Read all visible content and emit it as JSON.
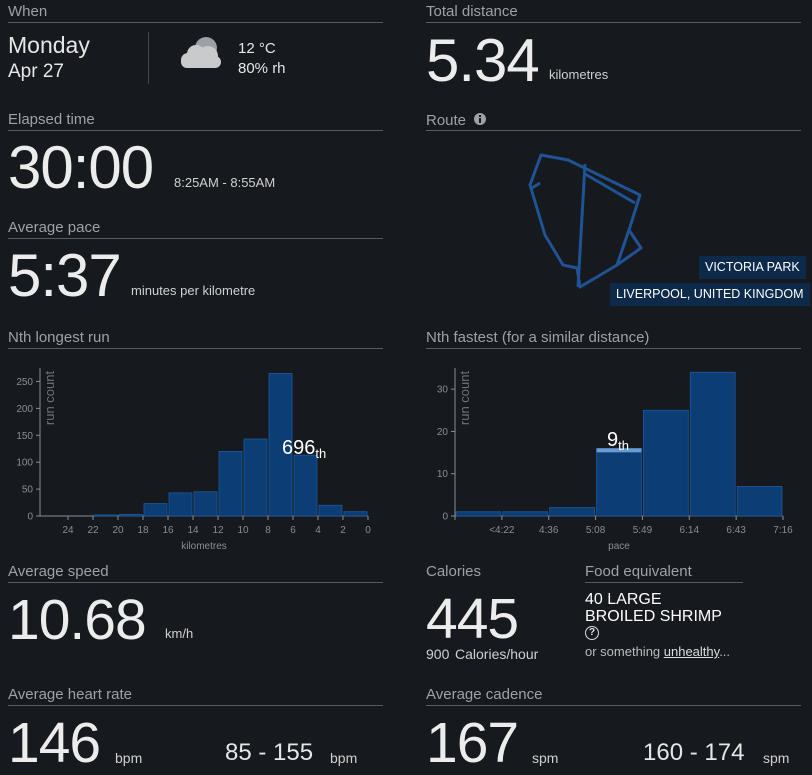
{
  "when": {
    "title": "When",
    "day": "Monday",
    "date": "Apr 27",
    "temperature": "12 °C",
    "humidity": "80% rh"
  },
  "total_distance": {
    "title": "Total distance",
    "value": "5.34",
    "unit": "kilometres"
  },
  "elapsed_time": {
    "title": "Elapsed time",
    "value": "30:00",
    "range": "8:25AM - 8:55AM"
  },
  "average_pace": {
    "title": "Average pace",
    "value": "5:37",
    "unit": "minutes per kilometre"
  },
  "route": {
    "title": "Route",
    "place": "VICTORIA PARK",
    "region": "LIVERPOOL, UNITED KINGDOM"
  },
  "chart_data": [
    {
      "type": "histogram",
      "title": "Nth longest run",
      "ylabel": "run count",
      "xlabel": "kilometres",
      "bins": [
        22,
        20,
        18,
        16,
        14,
        12,
        10,
        8,
        6,
        4,
        2,
        0
      ],
      "values": [
        2,
        3,
        23,
        43,
        45,
        120,
        143,
        265,
        113,
        20,
        8
      ],
      "xlim": [
        26,
        0
      ],
      "xticks": [
        24,
        22,
        20,
        18,
        16,
        14,
        12,
        10,
        8,
        6,
        4,
        2,
        0
      ],
      "ylim": [
        0,
        275
      ],
      "yticks": [
        0,
        50,
        100,
        150,
        200,
        250
      ],
      "color": "#0c3d74",
      "annotation": "696",
      "annotation_suffix": "th"
    },
    {
      "type": "category-histogram",
      "title": "Nth fastest (for a similar distance)",
      "ylabel": "run count",
      "xlabel": "pace",
      "bins": [
        null,
        "<4:22",
        "4:36",
        "5:08",
        "5:49",
        "6:14",
        "6:43",
        "7:16"
      ],
      "values": [
        1,
        1,
        2,
        16,
        25,
        34,
        7
      ],
      "ylim": [
        0,
        35
      ],
      "yticks": [
        0,
        10,
        20,
        30
      ],
      "color": "#0c3d74",
      "annotation": "9",
      "annotation_suffix": "th"
    }
  ],
  "average_speed": {
    "title": "Average speed",
    "value": "10.68",
    "unit": "km/h"
  },
  "calories": {
    "title": "Calories",
    "value": "445",
    "rate": "900",
    "rate_unit": "Calories/hour"
  },
  "food": {
    "title": "Food equivalent",
    "item_line1": "40 LARGE",
    "item_line2": "BROILED SHRIMP",
    "help": "?",
    "prefix": "or something ",
    "link": "unhealthy",
    "suffix": "..."
  },
  "heart_rate": {
    "title": "Average heart rate",
    "value": "146",
    "unit": "bpm",
    "range": "85 - 155",
    "range_unit": "bpm"
  },
  "cadence": {
    "title": "Average cadence",
    "value": "167",
    "unit": "spm",
    "range": "160 - 174",
    "range_unit": "spm"
  }
}
